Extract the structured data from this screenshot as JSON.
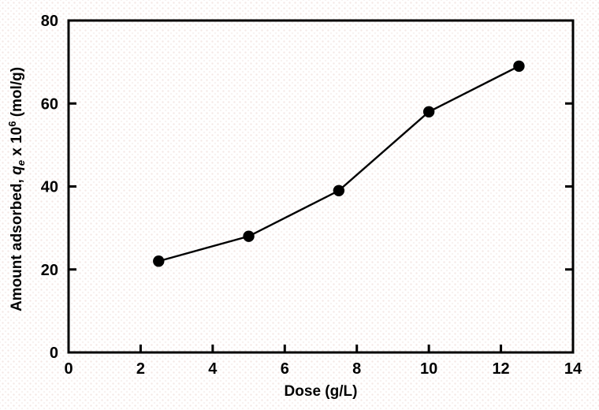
{
  "figure": {
    "background_color": "#ffffff",
    "texture_dot_color": "#ecd6d0"
  },
  "chart_data": {
    "type": "line",
    "title": "",
    "xlabel": "Dose (g/L)",
    "ylabel_plain": "Amount adsorbed, qe x 10^6 (mol/g)",
    "ylabel_parts": [
      {
        "text": "Amount adsorbed, ",
        "kind": "normal"
      },
      {
        "text": "q",
        "kind": "italic"
      },
      {
        "text": "e",
        "kind": "sub"
      },
      {
        "text": " x 10",
        "kind": "normal"
      },
      {
        "text": "6",
        "kind": "sup"
      },
      {
        "text": " (mol/g)",
        "kind": "normal"
      }
    ],
    "series": [
      {
        "name": "amount-adsorbed-vs-dose",
        "x": [
          2.5,
          5,
          7.5,
          10,
          12.5
        ],
        "y": [
          22,
          28,
          39,
          58,
          69
        ]
      }
    ],
    "xlim": [
      0,
      14
    ],
    "ylim": [
      0,
      80
    ],
    "xticks": [
      0,
      2,
      4,
      6,
      8,
      10,
      12,
      14
    ],
    "yticks": [
      0,
      20,
      40,
      60,
      80
    ],
    "grid": false,
    "legend": "none",
    "line_color": "#000000",
    "marker": "filled-circle",
    "marker_color": "#000000",
    "axis_color": "#000000"
  }
}
